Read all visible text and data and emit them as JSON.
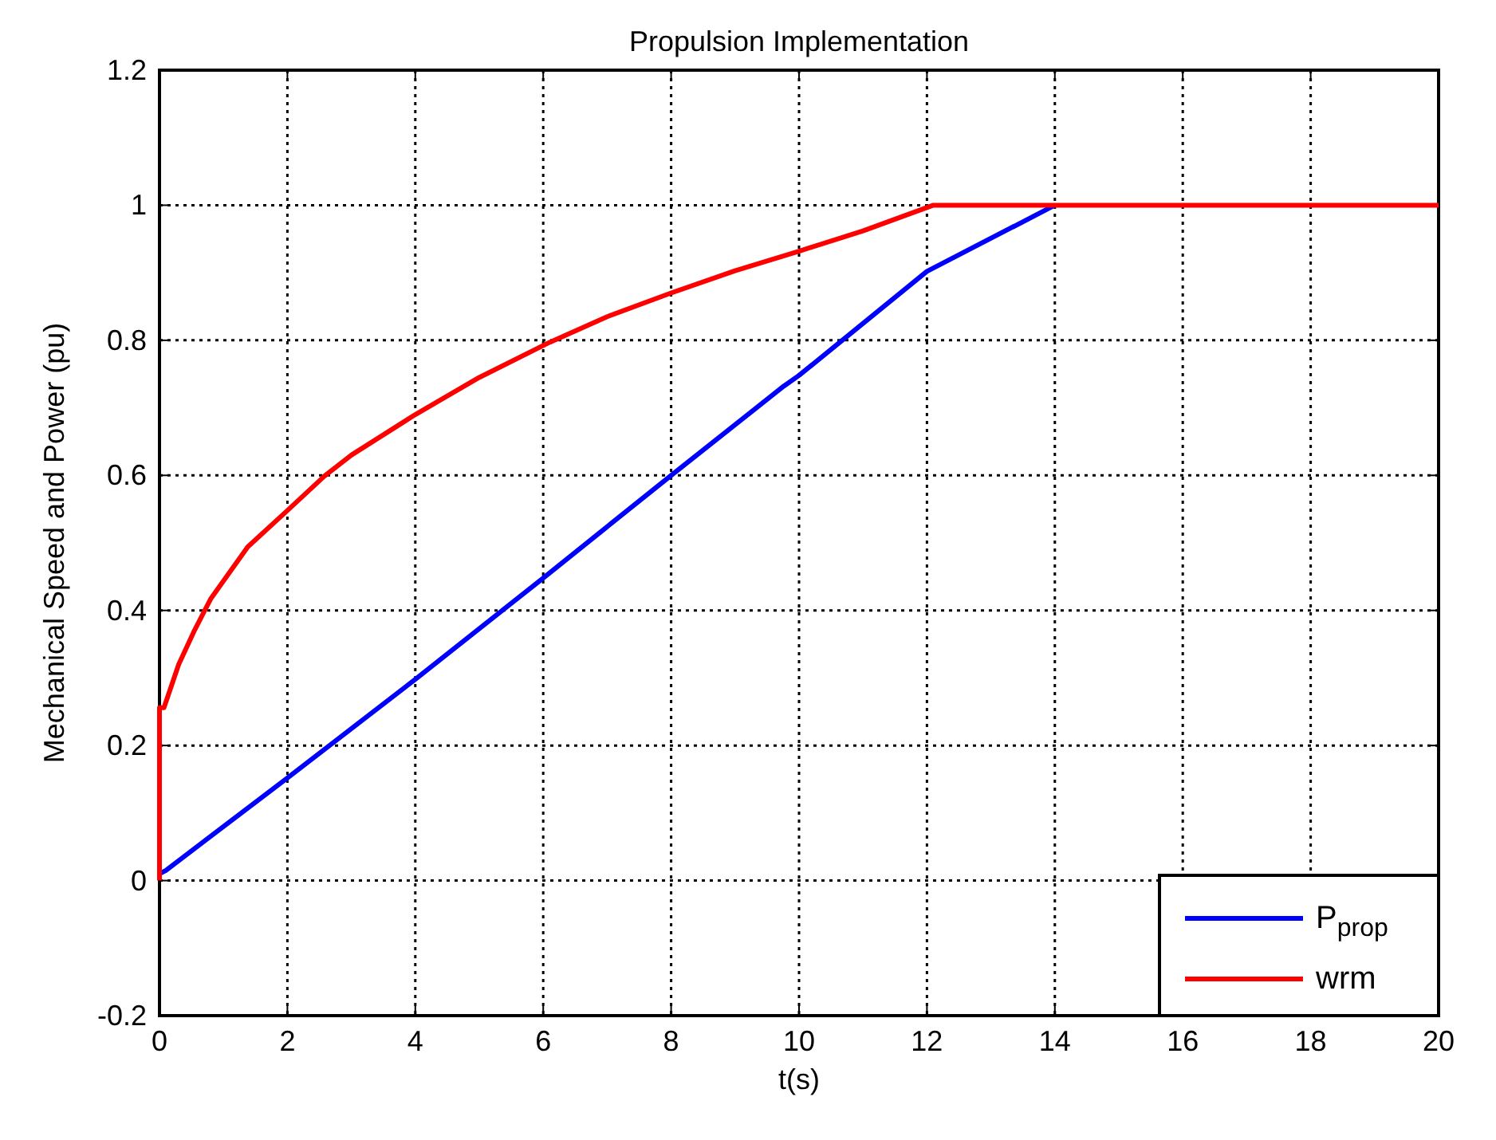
{
  "chart_data": {
    "type": "line",
    "title": "Propulsion Implementation",
    "xlabel": "t(s)",
    "ylabel": "Mechanical Speed and Power (pu)",
    "xlim": [
      0,
      20
    ],
    "ylim": [
      -0.2,
      1.2
    ],
    "xticks": [
      0,
      2,
      4,
      6,
      8,
      10,
      12,
      14,
      16,
      18,
      20
    ],
    "yticks": [
      -0.2,
      0,
      0.2,
      0.4,
      0.6,
      0.8,
      1,
      1.2
    ],
    "grid": true,
    "legend": "bottom right",
    "marker": "none",
    "line_style": "solid",
    "series": [
      {
        "name": "P$_{prop}$",
        "color": "#0000ff",
        "x": [
          0,
          0.1,
          2,
          4,
          6,
          8,
          9.76,
          10,
          12,
          14
        ],
        "values": [
          0.01,
          0.015,
          0.152,
          0.298,
          0.448,
          0.6,
          0.732,
          0.748,
          0.902,
          1
        ]
      },
      {
        "name": "wrm",
        "color": "#ff0000",
        "x": [
          0,
          0,
          0.07,
          0.3,
          0.55,
          0.8,
          1.38,
          2,
          2.58,
          3,
          4,
          5,
          6.1,
          7,
          8,
          9,
          10,
          11,
          12.1,
          14,
          20
        ],
        "values": [
          0,
          0.256,
          0.256,
          0.32,
          0.371,
          0.417,
          0.494,
          0.548,
          0.599,
          0.63,
          0.69,
          0.745,
          0.797,
          0.835,
          0.87,
          0.903,
          0.932,
          0.962,
          1,
          1,
          1
        ]
      }
    ]
  }
}
